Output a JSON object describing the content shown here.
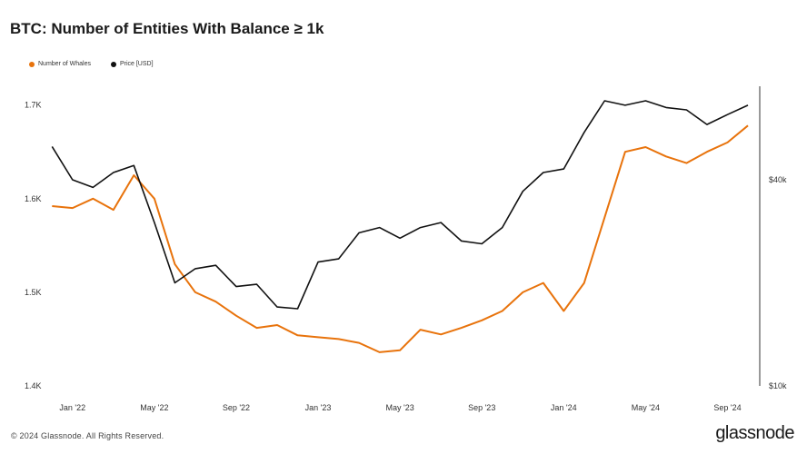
{
  "title": "BTC: Number of Entities With Balance ≥ 1k",
  "footer": {
    "copyright": "© 2024 Glassnode. All Rights Reserved.",
    "brand": "glassnode"
  },
  "colors": {
    "whales": "#e8730c",
    "price": "#111111"
  },
  "chart_data": {
    "type": "line",
    "title": "BTC: Number of Entities With Balance ≥ 1k",
    "legend": [
      "Number of Whales",
      "Price [USD]"
    ],
    "legend_position": "top-left",
    "grid": false,
    "x_ticks": [
      "Jan '22",
      "May '22",
      "Sep '22",
      "Jan '23",
      "May '23",
      "Sep '23",
      "Jan '24",
      "May '24",
      "Sep '24"
    ],
    "y_left_ticks": [
      "1.4K",
      "1.5K",
      "1.6K",
      "1.7K"
    ],
    "y_left_lim": [
      1400,
      1720
    ],
    "y_right_ticks": [
      "$10k",
      "$40k"
    ],
    "y_right_scale": "log",
    "x": [
      "2021-11",
      "2021-12",
      "2022-01",
      "2022-02",
      "2022-03",
      "2022-04",
      "2022-05",
      "2022-06",
      "2022-07",
      "2022-08",
      "2022-09",
      "2022-10",
      "2022-11",
      "2022-12",
      "2023-01",
      "2023-02",
      "2023-03",
      "2023-04",
      "2023-05",
      "2023-06",
      "2023-07",
      "2023-08",
      "2023-09",
      "2023-10",
      "2023-11",
      "2023-12",
      "2024-01",
      "2024-02",
      "2024-03",
      "2024-04",
      "2024-05",
      "2024-06",
      "2024-07",
      "2024-08",
      "2024-09",
      "2024-10"
    ],
    "series": [
      {
        "name": "Number of Whales",
        "axis": "left",
        "values": [
          1598,
          1592,
          1590,
          1600,
          1588,
          1625,
          1600,
          1530,
          1500,
          1490,
          1475,
          1462,
          1465,
          1454,
          1452,
          1450,
          1446,
          1436,
          1438,
          1460,
          1455,
          1462,
          1470,
          1480,
          1500,
          1510,
          1480,
          1510,
          1580,
          1650,
          1655,
          1645,
          1638,
          1650,
          1660,
          1678
        ]
      },
      {
        "name": "Price [USD]",
        "axis": "right",
        "values": [
          60000,
          50000,
          40000,
          38000,
          42000,
          44000,
          30000,
          20000,
          22000,
          22500,
          19500,
          19800,
          17000,
          16800,
          23000,
          23500,
          28000,
          29000,
          27000,
          29000,
          30000,
          26500,
          26000,
          29000,
          37000,
          42000,
          43000,
          55000,
          68000,
          66000,
          68000,
          65000,
          64000,
          58000,
          62000,
          66000
        ]
      }
    ]
  }
}
